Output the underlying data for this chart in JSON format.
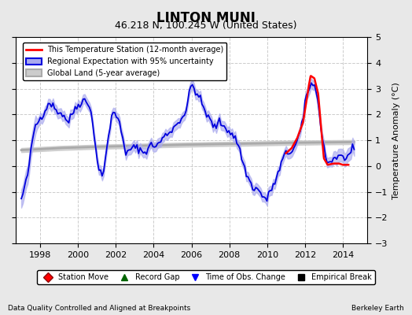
{
  "title": "LINTON MUNI",
  "subtitle": "46.218 N, 100.245 W (United States)",
  "ylabel": "Temperature Anomaly (°C)",
  "footer_left": "Data Quality Controlled and Aligned at Breakpoints",
  "footer_right": "Berkeley Earth",
  "xlim": [
    1996.7,
    2015.3
  ],
  "ylim": [
    -3.0,
    5.0
  ],
  "yticks": [
    -3,
    -2,
    -1,
    0,
    1,
    2,
    3,
    4,
    5
  ],
  "xticks": [
    1998,
    2000,
    2002,
    2004,
    2006,
    2008,
    2010,
    2012,
    2014
  ],
  "background_color": "#e8e8e8",
  "plot_bg_color": "#ffffff",
  "regional_color": "#0000dd",
  "regional_fill_color": "#aaaaee",
  "station_color": "#ff0000",
  "global_color": "#aaaaaa",
  "global_fill_color": "#cccccc",
  "grid_color": "#cccccc",
  "figsize": [
    5.24,
    4.0
  ],
  "dpi": 100
}
